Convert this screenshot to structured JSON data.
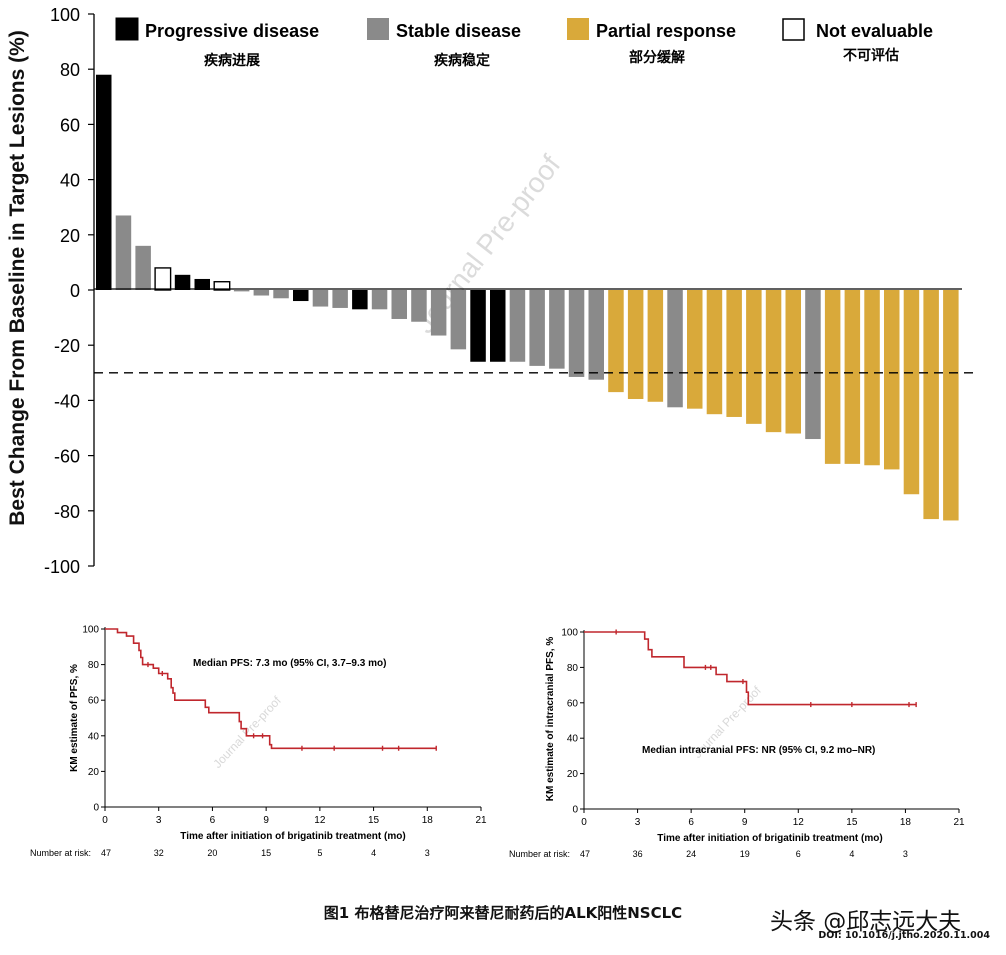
{
  "chart_data": [
    {
      "type": "bar",
      "title": "",
      "ylabel": "Best Change From Baseline in Target Lesions (%)",
      "xlabel": "",
      "ylim": [
        -100,
        100
      ],
      "yticks": [
        100,
        80,
        60,
        40,
        20,
        0,
        -20,
        -40,
        -60,
        -80,
        -100
      ],
      "threshold": -30,
      "watermark": "Journal Pre-proof",
      "legend": [
        {
          "key": "PD",
          "label": "Progressive disease",
          "zh": "疾病进展",
          "color": "#000000"
        },
        {
          "key": "SD",
          "label": "Stable disease",
          "zh": "疾病稳定",
          "color": "#8a8a8a"
        },
        {
          "key": "PR",
          "label": "Partial response",
          "zh": "部分缓解",
          "color": "#d9a93a"
        },
        {
          "key": "NE",
          "label": "Not evaluable",
          "zh": "不可评估",
          "color": "#ffffff"
        }
      ],
      "bars": [
        {
          "v": 78,
          "c": "PD"
        },
        {
          "v": 27,
          "c": "SD"
        },
        {
          "v": 16,
          "c": "SD"
        },
        {
          "v": 8,
          "c": "NE"
        },
        {
          "v": 5.5,
          "c": "PD"
        },
        {
          "v": 4,
          "c": "PD"
        },
        {
          "v": 3,
          "c": "NE"
        },
        {
          "v": -0.5,
          "c": "SD"
        },
        {
          "v": -2,
          "c": "SD"
        },
        {
          "v": -3,
          "c": "SD"
        },
        {
          "v": -4,
          "c": "PD"
        },
        {
          "v": -6,
          "c": "SD"
        },
        {
          "v": -6.5,
          "c": "SD"
        },
        {
          "v": -7,
          "c": "PD"
        },
        {
          "v": -7,
          "c": "SD"
        },
        {
          "v": -10.5,
          "c": "SD"
        },
        {
          "v": -11.5,
          "c": "SD"
        },
        {
          "v": -16.5,
          "c": "SD"
        },
        {
          "v": -21.5,
          "c": "SD"
        },
        {
          "v": -26,
          "c": "PD"
        },
        {
          "v": -26,
          "c": "PD"
        },
        {
          "v": -26,
          "c": "SD"
        },
        {
          "v": -27.5,
          "c": "SD"
        },
        {
          "v": -28.5,
          "c": "SD"
        },
        {
          "v": -31.5,
          "c": "SD"
        },
        {
          "v": -32.5,
          "c": "SD"
        },
        {
          "v": -37,
          "c": "PR"
        },
        {
          "v": -39.5,
          "c": "PR"
        },
        {
          "v": -40.5,
          "c": "PR"
        },
        {
          "v": -42.5,
          "c": "SD"
        },
        {
          "v": -43,
          "c": "PR"
        },
        {
          "v": -45,
          "c": "PR"
        },
        {
          "v": -46,
          "c": "PR"
        },
        {
          "v": -48.5,
          "c": "PR"
        },
        {
          "v": -51.5,
          "c": "PR"
        },
        {
          "v": -52,
          "c": "PR"
        },
        {
          "v": -54,
          "c": "SD"
        },
        {
          "v": -63,
          "c": "PR"
        },
        {
          "v": -63,
          "c": "PR"
        },
        {
          "v": -63.5,
          "c": "PR"
        },
        {
          "v": -65,
          "c": "PR"
        },
        {
          "v": -74,
          "c": "PR"
        },
        {
          "v": -83,
          "c": "PR"
        },
        {
          "v": -83.5,
          "c": "PR"
        }
      ]
    },
    {
      "type": "line",
      "subtype": "kaplan-meier",
      "ylabel": "KM estimate of PFS, %",
      "xlabel": "Time after initiation of brigatinib treatment (mo)",
      "xlim": [
        0,
        21
      ],
      "ylim": [
        0,
        100
      ],
      "xticks": [
        0,
        3,
        6,
        9,
        12,
        15,
        18,
        21
      ],
      "yticks": [
        0,
        20,
        40,
        60,
        80,
        100
      ],
      "annotation": "Median  PFS: 7.3 mo  (95% CI, 3.7–9.3 mo)",
      "watermark": "Journal Pre-proof",
      "series": [
        {
          "name": "PFS",
          "color": "#c0272d",
          "steps": [
            [
              0,
              100
            ],
            [
              0.7,
              100
            ],
            [
              0.7,
              98
            ],
            [
              1.2,
              98
            ],
            [
              1.2,
              96
            ],
            [
              1.6,
              96
            ],
            [
              1.6,
              92
            ],
            [
              1.9,
              92
            ],
            [
              1.9,
              88
            ],
            [
              2.0,
              88
            ],
            [
              2.0,
              84
            ],
            [
              2.1,
              84
            ],
            [
              2.1,
              80
            ],
            [
              2.7,
              80
            ],
            [
              2.7,
              78
            ],
            [
              3.0,
              78
            ],
            [
              3.0,
              75
            ],
            [
              3.5,
              75
            ],
            [
              3.5,
              72
            ],
            [
              3.7,
              72
            ],
            [
              3.7,
              67
            ],
            [
              3.8,
              67
            ],
            [
              3.8,
              64
            ],
            [
              3.9,
              64
            ],
            [
              3.9,
              60
            ],
            [
              5.6,
              60
            ],
            [
              5.6,
              56
            ],
            [
              5.8,
              56
            ],
            [
              5.8,
              53
            ],
            [
              7.5,
              53
            ],
            [
              7.5,
              48
            ],
            [
              7.6,
              48
            ],
            [
              7.6,
              44
            ],
            [
              7.9,
              44
            ],
            [
              7.9,
              40
            ],
            [
              9.2,
              40
            ],
            [
              9.2,
              35
            ],
            [
              9.3,
              35
            ],
            [
              9.3,
              33
            ],
            [
              18.5,
              33
            ]
          ],
          "censored": [
            [
              2.4,
              80
            ],
            [
              3.2,
              75
            ],
            [
              8.3,
              40
            ],
            [
              8.8,
              40
            ],
            [
              11.0,
              33
            ],
            [
              12.8,
              33
            ],
            [
              15.5,
              33
            ],
            [
              16.4,
              33
            ],
            [
              18.5,
              33
            ]
          ]
        }
      ],
      "risk_label": "Number at risk:",
      "risk_times": [
        0,
        3,
        6,
        9,
        12,
        15,
        18
      ],
      "risk_numbers": [
        "47",
        "32",
        "20",
        "15",
        "5",
        "4",
        "3"
      ]
    },
    {
      "type": "line",
      "subtype": "kaplan-meier",
      "ylabel": "KM estimate of intracranial PFS, %",
      "xlabel": "Time after initiation of brigatinib treatment (mo)",
      "xlim": [
        0,
        21
      ],
      "ylim": [
        0,
        100
      ],
      "xticks": [
        0,
        3,
        6,
        9,
        12,
        15,
        18,
        21
      ],
      "yticks": [
        0,
        20,
        40,
        60,
        80,
        100
      ],
      "annotation": "Median intracranial PFS: NR (95% CI, 9.2 mo–NR)",
      "watermark": "Journal Pre-proof",
      "series": [
        {
          "name": "Intracranial PFS",
          "color": "#c0272d",
          "steps": [
            [
              0,
              100
            ],
            [
              3.4,
              100
            ],
            [
              3.4,
              96
            ],
            [
              3.6,
              96
            ],
            [
              3.6,
              90
            ],
            [
              3.8,
              90
            ],
            [
              3.8,
              86
            ],
            [
              5.6,
              86
            ],
            [
              5.6,
              80
            ],
            [
              7.4,
              80
            ],
            [
              7.4,
              76
            ],
            [
              8.0,
              76
            ],
            [
              8.0,
              72
            ],
            [
              9.1,
              72
            ],
            [
              9.1,
              66
            ],
            [
              9.2,
              66
            ],
            [
              9.2,
              59
            ],
            [
              18.6,
              59
            ]
          ],
          "censored": [
            [
              1.8,
              100
            ],
            [
              6.8,
              80
            ],
            [
              7.1,
              80
            ],
            [
              8.9,
              72
            ],
            [
              12.7,
              59
            ],
            [
              15.0,
              59
            ],
            [
              18.2,
              59
            ],
            [
              18.6,
              59
            ]
          ]
        }
      ],
      "risk_label": "Number at risk:",
      "risk_times": [
        0,
        3,
        6,
        9,
        12,
        15,
        18
      ],
      "risk_numbers": [
        "47",
        "36",
        "24",
        "19",
        "6",
        "4",
        "3"
      ]
    }
  ],
  "caption": "图1 布格替尼治疗阿来替尼耐药后的ALK阳性NSCLC",
  "brand": "头条 @邱志远大夫",
  "doi": "DOI: 10.1016/j.jtho.2020.11.004"
}
